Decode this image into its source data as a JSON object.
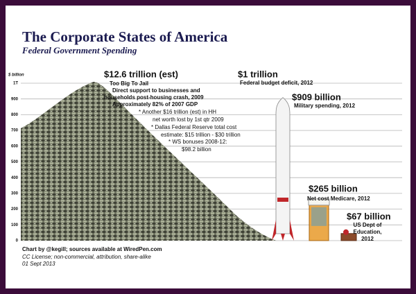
{
  "title": "The Corporate States of America",
  "subtitle": "Federal Government Spending",
  "chart_data": {
    "type": "bar",
    "y_label": "$ billion",
    "categories": [
      "Military spending, 2012",
      "Net cost Medicare, 2012",
      "US Dept of Education, 2012"
    ],
    "values": [
      909,
      265,
      67
    ],
    "value_labels": [
      "$909 billion",
      "$265 billion",
      "$67 billion"
    ],
    "ylim": [
      0,
      1000
    ],
    "yticks": [
      0,
      100,
      200,
      300,
      400,
      500,
      600,
      700,
      800,
      900,
      {
        "value": 1000,
        "label": "1T"
      }
    ],
    "grid": true
  },
  "pile": {
    "headline": "$12.6 trillion (est)",
    "lines": [
      "Too Big To Jail",
      "Direct support to businesses and",
      "households post-housing crash, 2009",
      "Approximately 82% of 2007 GDP"
    ],
    "notes": [
      "* Another $16 trillion (est) in HH",
      "net worth lost by 1st qtr 2009",
      "* Dallas Federal Reserve total cost",
      "estimate: $15 trillion - $30 trillion",
      "* WS bonuses 2008-12:",
      "$98.2 billion"
    ]
  },
  "deficit": {
    "headline": "$1 trillion",
    "label": "Federal budget deficit, 2012"
  },
  "footer": {
    "credit": "Chart by @kegill; sources available at WiredPen.com",
    "license": "CC License; non-commercial, attribution, share-alike",
    "date": "01 Sept 2013"
  }
}
